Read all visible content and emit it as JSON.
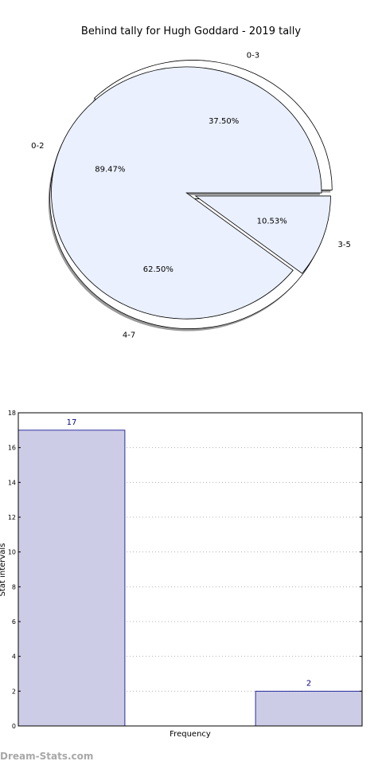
{
  "chart_data": [
    {
      "type": "pie",
      "title": "Behind tally for Hugh Goddard - 2019 tally",
      "series": [
        {
          "slices": [
            {
              "label": "0-3",
              "pct_label": "37.50%",
              "value": 37.5
            },
            {
              "label": "4-7",
              "pct_label": "62.50%",
              "value": 62.5
            }
          ]
        },
        {
          "slices": [
            {
              "label": "0-2",
              "pct_label": "89.47%",
              "value": 89.47
            },
            {
              "label": "3-5",
              "pct_label": "10.53%",
              "value": 10.53
            }
          ]
        }
      ],
      "colors": {
        "series_1": "#ffffff",
        "series_2": "#eaf0fd",
        "shadow": "#9a9a9a",
        "edge": "#000000"
      }
    },
    {
      "type": "bar",
      "categories": [
        "",
        ""
      ],
      "values": [
        17,
        2
      ],
      "value_labels": [
        "17",
        "2"
      ],
      "xlabel": "Frequency",
      "ylabel": "Stat intervals",
      "ylim": [
        0,
        18
      ],
      "yticks": [
        "0",
        "2",
        "4",
        "6",
        "8",
        "10",
        "12",
        "14",
        "16",
        "18"
      ],
      "grid": true,
      "colors": {
        "bar_fill": "#ccccE6",
        "bar_edge": "#00008b",
        "label": "#00008b",
        "grid": "#b0b0b0"
      }
    }
  ],
  "watermark": "Dream-Stats.com"
}
